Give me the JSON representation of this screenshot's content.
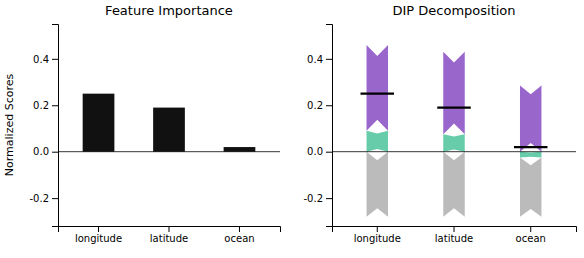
{
  "chart_data": [
    {
      "type": "bar",
      "title": "Feature Importance",
      "ylabel": "Normalized Scores",
      "categories": [
        "longitude",
        "latitude",
        "ocean"
      ],
      "values": [
        0.25,
        0.19,
        0.02
      ],
      "color": "#111111",
      "ylim": [
        -0.32,
        0.55
      ],
      "yticks": [
        -0.2,
        {
          "value": 0.0,
          "label": "0.0"
        },
        0.2,
        0.4
      ],
      "grid": false
    },
    {
      "type": "bar",
      "title": "DIP Decomposition",
      "stacked": true,
      "categories": [
        "longitude",
        "latitude",
        "ocean"
      ],
      "series": [
        {
          "color": "#66CCAA",
          "values": [
            0.09,
            0.075,
            0.0
          ]
        },
        {
          "color": "#9966CC",
          "values": [
            0.37,
            0.355,
            0.285
          ]
        },
        {
          "color": "#66CCAA",
          "values": [
            0.0,
            0.0,
            -0.025
          ]
        },
        {
          "color": "#BBBBBB",
          "values": [
            -0.28,
            -0.28,
            -0.255
          ]
        },
        {
          "type": "scatter",
          "marker": "hline",
          "color": "#000000",
          "values": [
            0.25,
            0.19,
            0.02
          ]
        }
      ],
      "ylim": [
        -0.32,
        0.55
      ],
      "yticks": [
        -0.2,
        {
          "value": 0.0,
          "label": "0.0"
        },
        0.2,
        0.4
      ],
      "grid": false
    }
  ]
}
